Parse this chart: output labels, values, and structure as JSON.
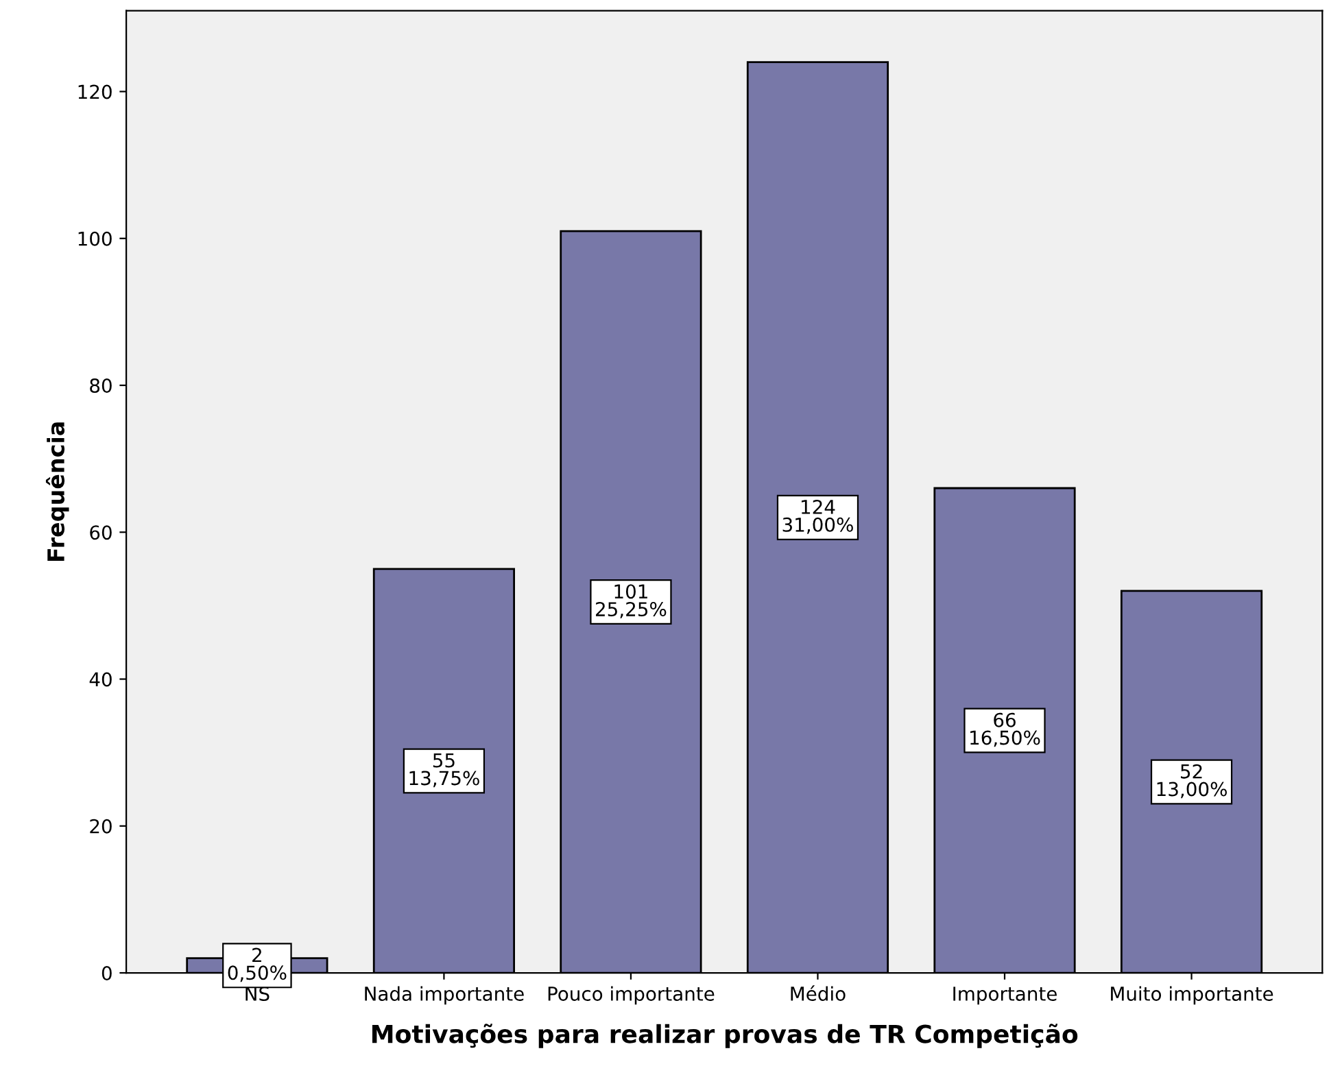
{
  "chart_data": {
    "type": "bar",
    "xlabel": "Motivações para realizar provas de TR Competição",
    "ylabel": "Frequência",
    "categories": [
      "NS",
      "Nada importante",
      "Pouco importante",
      "Médio",
      "Importante",
      "Muito importante"
    ],
    "values": [
      2,
      55,
      101,
      124,
      66,
      52
    ],
    "value_labels": [
      "2\n0,50%",
      "55\n13,75%",
      "101\n25,25%",
      "124\n31,00%",
      "66\n16,50%",
      "52\n13,00%"
    ],
    "color": "#7878a8",
    "ylim": [
      0,
      131
    ],
    "yticks": [
      0,
      20,
      40,
      60,
      80,
      100,
      120
    ],
    "grid": false
  }
}
